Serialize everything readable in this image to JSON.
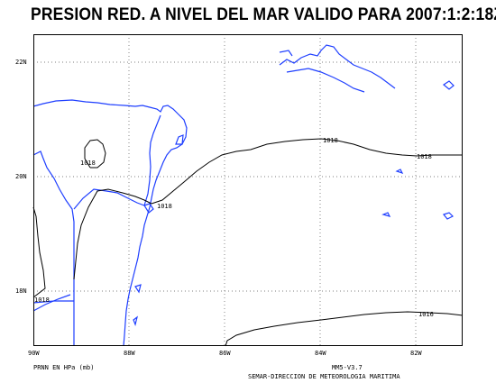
{
  "title": "PRESION RED. A NIVEL DEL MAR VALIDO PARA 2007:1:2:18Z",
  "lat_labels": [
    "22N",
    "20N",
    "18N"
  ],
  "lon_labels": [
    "90W",
    "88W",
    "86W",
    "84W",
    "82W"
  ],
  "isobar_labels": [
    "1018",
    "1018",
    "1018",
    "1018",
    "1018",
    "1016"
  ],
  "footer": {
    "left": "PRNN EN HPa (mb)",
    "version": "MM5-V3.7",
    "org": "SEMAR-DIRECCION DE METEOROLOGIA MARITIMA"
  },
  "colors": {
    "coast": "#1f3fff",
    "isobar": "#000000",
    "grid": "#555555"
  }
}
